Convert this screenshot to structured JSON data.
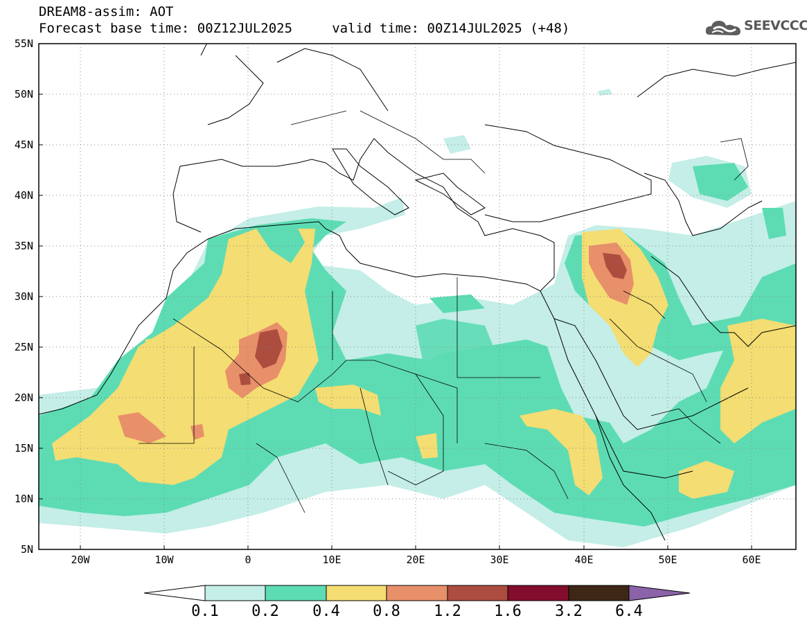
{
  "header": {
    "line1": "DREAM8-assim: AOT",
    "line2": "Forecast base time: 00Z12JUL2025     valid time: 00Z14JUL2025 (+48)"
  },
  "logo": {
    "text": "SEEVCCC",
    "icon": "cloud-logo-icon",
    "color": "#595959"
  },
  "map": {
    "lon_range": [
      -25,
      65
    ],
    "lat_range": [
      5,
      55
    ],
    "lat_ticks": [
      "55N",
      "50N",
      "45N",
      "40N",
      "35N",
      "30N",
      "25N",
      "20N",
      "15N",
      "10N",
      "5N"
    ],
    "lon_ticks": [
      "20W",
      "10W",
      "0",
      "10E",
      "20E",
      "30E",
      "40E",
      "50E",
      "60E"
    ],
    "grid": "dotted"
  },
  "colorbar": {
    "labels": [
      "0.1",
      "0.2",
      "0.4",
      "0.8",
      "1.2",
      "1.6",
      "3.2",
      "6.4"
    ],
    "colors": [
      "#c4eee7",
      "#5ddcb4",
      "#f4dd72",
      "#e8906a",
      "#ac4d3f",
      "#820d2c",
      "#3d2716",
      "#8a63a8"
    ],
    "under_color": "#ffffff"
  }
}
